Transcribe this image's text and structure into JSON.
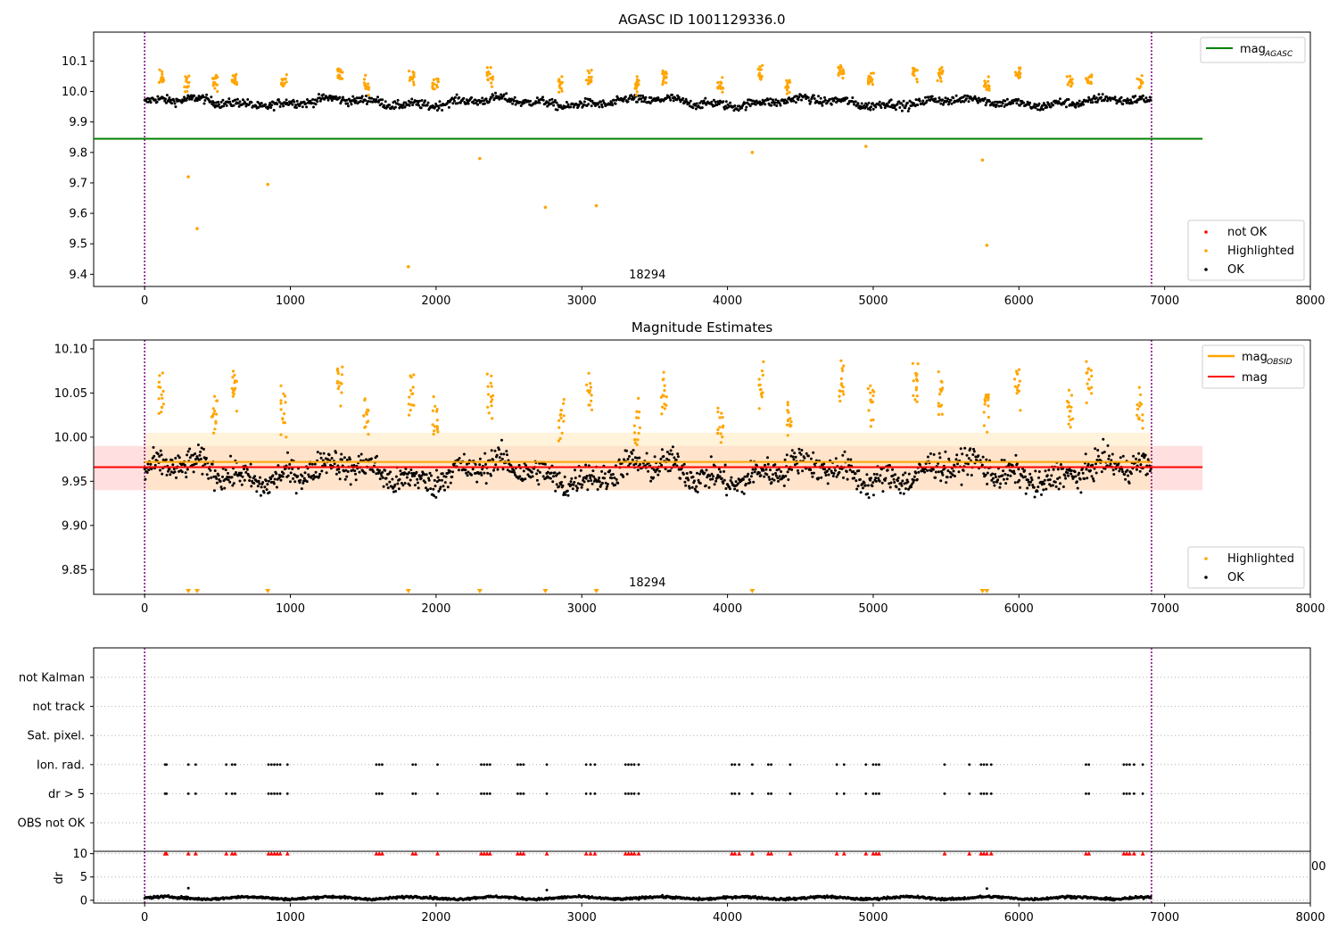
{
  "figure": {
    "title": "AGASC ID 1001129336.0",
    "vline_color": "#800080"
  },
  "chart_data": [
    {
      "type": "scatter",
      "title": "AGASC ID 1001129336.0",
      "xlim": [
        -350,
        8000
      ],
      "ylim": [
        9.36,
        10.195
      ],
      "xticks": [
        0,
        1000,
        2000,
        3000,
        4000,
        5000,
        6000,
        7000,
        8000
      ],
      "yticks": [
        9.4,
        9.5,
        9.6,
        9.7,
        9.8,
        9.9,
        10.0,
        10.1
      ],
      "xtick_labels": [
        "0",
        "1000",
        "2000",
        "3000",
        "4000",
        "5000",
        "6000",
        "7000",
        "8000"
      ],
      "ytick_labels": [
        "9.4",
        "9.5",
        "9.6",
        "9.7",
        "9.8",
        "9.9",
        "10.0",
        "10.1"
      ],
      "annotation": "18294",
      "annotation_x": 3450,
      "vlines_x": [
        0,
        6910
      ],
      "hlines": [
        {
          "name": "magAGASC",
          "y": 9.845,
          "x_range": [
            -350,
            7260
          ],
          "color": "#008000"
        }
      ],
      "legends": [
        {
          "position": "upper right",
          "entries": [
            {
              "label": "mag",
              "sub": "AGASC",
              "kind": "line",
              "color": "#008000"
            }
          ]
        },
        {
          "position": "lower right",
          "entries": [
            {
              "label": "not OK",
              "kind": "dot",
              "color": "#ff0000"
            },
            {
              "label": "Highlighted",
              "kind": "dot",
              "color": "#ffa500"
            },
            {
              "label": "OK",
              "kind": "dot",
              "color": "#000000"
            }
          ]
        }
      ],
      "series": [
        {
          "name": "OK",
          "color": "#000000",
          "x_range": [
            0,
            6910
          ],
          "level": 9.965,
          "spread": 0.02
        },
        {
          "name": "Highlighted",
          "color": "#ffa500",
          "clusters_x": [
            115,
            290,
            480,
            620,
            955,
            1340,
            1520,
            1830,
            1995,
            2370,
            2860,
            3050,
            3380,
            3565,
            3950,
            4230,
            4420,
            4780,
            4985,
            5290,
            5460,
            5780,
            5990,
            6350,
            6480,
            6830
          ],
          "clusters_y": [
            10.07,
            10.05,
            10.05,
            10.07,
            10.05,
            10.08,
            10.04,
            10.07,
            10.04,
            10.07,
            10.04,
            10.07,
            10.04,
            10.07,
            10.04,
            10.08,
            10.04,
            10.08,
            10.06,
            10.08,
            10.07,
            10.05,
            10.08,
            10.05,
            10.06,
            10.05
          ],
          "outliers_x": [
            300,
            360,
            845,
            1810,
            2300,
            2750,
            3100,
            4170,
            4950,
            5750,
            5780
          ],
          "outliers_y": [
            9.72,
            9.55,
            9.695,
            9.425,
            9.78,
            9.62,
            9.625,
            9.8,
            9.82,
            9.775,
            9.495
          ]
        }
      ]
    },
    {
      "type": "scatter",
      "title": "Magnitude Estimates",
      "xlim": [
        -350,
        8000
      ],
      "ylim": [
        9.822,
        10.11
      ],
      "xticks": [
        0,
        1000,
        2000,
        3000,
        4000,
        5000,
        6000,
        7000,
        8000
      ],
      "yticks": [
        9.85,
        9.9,
        9.95,
        10.0,
        10.05,
        10.1
      ],
      "xtick_labels": [
        "0",
        "1000",
        "2000",
        "3000",
        "4000",
        "5000",
        "6000",
        "7000",
        "8000"
      ],
      "ytick_labels": [
        "9.85",
        "9.90",
        "9.95",
        "10.00",
        "10.05",
        "10.10"
      ],
      "annotation": "18294",
      "annotation_x": 3450,
      "vlines_x": [
        0,
        6910
      ],
      "bands": [
        {
          "name": "mag",
          "y_range": [
            9.94,
            9.99
          ],
          "x_range": [
            -350,
            7260
          ],
          "color": "#ffc0c0"
        },
        {
          "name": "magOBSID",
          "y_range": [
            9.94,
            10.005
          ],
          "x_range": [
            0,
            6910
          ],
          "color": "#ffe8b8"
        }
      ],
      "hlines": [
        {
          "name": "magOBSID",
          "y": 9.972,
          "x_range": [
            0,
            6910
          ],
          "color": "#ffa500"
        },
        {
          "name": "mag",
          "y": 9.966,
          "x_range": [
            -350,
            7260
          ],
          "color": "#ff0000"
        }
      ],
      "off_scale_markers_x": [
        300,
        360,
        845,
        1810,
        2300,
        2750,
        3100,
        4170,
        5750,
        5780
      ],
      "legends": [
        {
          "position": "upper right",
          "entries": [
            {
              "label": "mag",
              "sub": "OBSID",
              "kind": "line",
              "color": "#ffa500"
            },
            {
              "label": "mag",
              "kind": "line",
              "color": "#ff0000"
            }
          ]
        },
        {
          "position": "lower right",
          "entries": [
            {
              "label": "Highlighted",
              "kind": "dot",
              "color": "#ffa500"
            },
            {
              "label": "OK",
              "kind": "dot",
              "color": "#000000"
            }
          ]
        }
      ],
      "series": [
        {
          "name": "OK",
          "color": "#000000",
          "x_range": [
            0,
            6910
          ],
          "level": 9.96,
          "spread": 0.022
        },
        {
          "name": "Highlighted",
          "color": "#ffa500",
          "clusters_x": [
            115,
            480,
            620,
            955,
            1340,
            1520,
            1830,
            1995,
            2370,
            2860,
            3050,
            3380,
            3565,
            3950,
            4230,
            4420,
            4780,
            4985,
            5290,
            5460,
            5780,
            5990,
            6350,
            6480,
            6830
          ],
          "clusters_y": [
            10.07,
            10.05,
            10.07,
            10.05,
            10.08,
            10.04,
            10.07,
            10.04,
            10.07,
            10.04,
            10.07,
            10.04,
            10.07,
            10.04,
            10.08,
            10.04,
            10.08,
            10.06,
            10.08,
            10.07,
            10.05,
            10.08,
            10.05,
            10.085,
            10.05
          ]
        }
      ]
    },
    {
      "type": "scatter",
      "title": "",
      "xlim": [
        -350,
        8000
      ],
      "categories": [
        "not Kalman",
        "not track",
        "Sat. pixel.",
        "Ion. rad.",
        "dr > 5",
        "OBS not OK"
      ],
      "flag_x": [
        140,
        150,
        300,
        350,
        560,
        600,
        620,
        850,
        870,
        890,
        910,
        930,
        980,
        1590,
        1610,
        1630,
        1840,
        1860,
        2010,
        2310,
        2330,
        2350,
        2370,
        2560,
        2580,
        2600,
        2760,
        3030,
        3060,
        3090,
        3300,
        3320,
        3340,
        3360,
        3390,
        4030,
        4050,
        4080,
        4170,
        4280,
        4300,
        4430,
        4750,
        4800,
        4950,
        5000,
        5020,
        5040,
        5490,
        5660,
        5740,
        5760,
        5780,
        5810,
        6460,
        6480,
        6720,
        6740,
        6760,
        6790,
        6850
      ],
      "legend_fragment": "00"
    },
    {
      "type": "scatter",
      "title": "",
      "ylabel": "dr",
      "xlim": [
        -350,
        8000
      ],
      "ylim": [
        -0.6,
        10.5
      ],
      "xticks": [
        0,
        1000,
        2000,
        3000,
        4000,
        5000,
        6000,
        7000,
        8000
      ],
      "yticks": [
        0,
        5,
        10
      ],
      "xtick_labels": [
        "0",
        "1000",
        "2000",
        "3000",
        "4000",
        "5000",
        "6000",
        "7000",
        "8000"
      ],
      "ytick_labels": [
        "0",
        "5",
        "10"
      ],
      "vlines_x": [
        0,
        6910
      ],
      "series": [
        {
          "name": "dr",
          "color": "#000000",
          "x_range": [
            0,
            6910
          ],
          "level": 0.5,
          "spread": 0.35
        },
        {
          "name": "dr > 10",
          "color": "#ff0000",
          "marker": "triangle",
          "y": 10
        }
      ]
    }
  ]
}
